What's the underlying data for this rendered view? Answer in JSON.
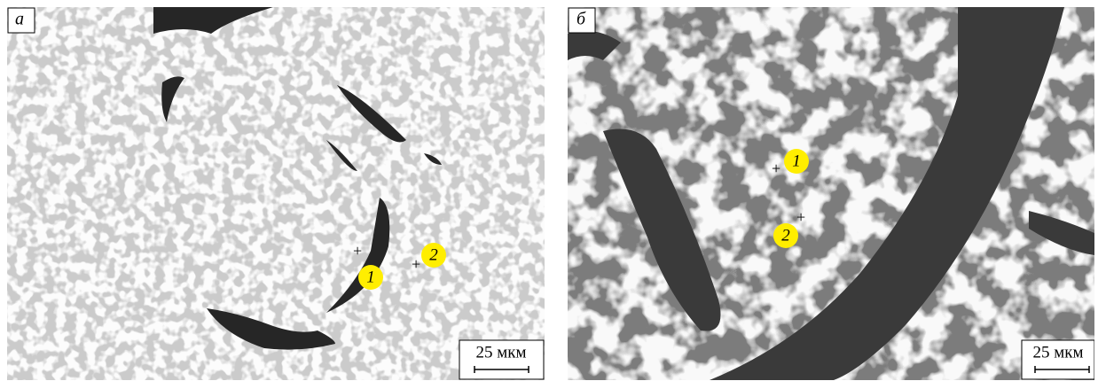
{
  "panels": [
    {
      "label": "а",
      "markers": [
        {
          "label": "1"
        },
        {
          "label": "2"
        }
      ],
      "scale_label": "25 мкм"
    },
    {
      "label": "б",
      "markers": [
        {
          "label": "1"
        },
        {
          "label": "2"
        }
      ],
      "scale_label": "25 мкм"
    }
  ]
}
